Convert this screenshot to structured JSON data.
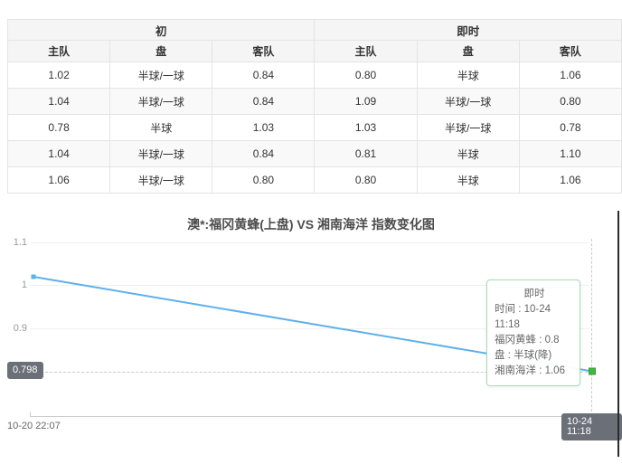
{
  "odds_table": {
    "sections": [
      {
        "label": "初"
      },
      {
        "label": "即时"
      }
    ],
    "column_headers": [
      "主队",
      "盘",
      "客队",
      "主队",
      "盘",
      "客队"
    ],
    "rows": [
      [
        "1.02",
        "半球/一球",
        "0.84",
        "0.80",
        "半球",
        "1.06"
      ],
      [
        "1.04",
        "半球/一球",
        "0.84",
        "1.09",
        "半球/一球",
        "0.80"
      ],
      [
        "0.78",
        "半球",
        "1.03",
        "1.03",
        "半球/一球",
        "0.78"
      ],
      [
        "1.04",
        "半球/一球",
        "0.84",
        "0.81",
        "半球",
        "1.10"
      ],
      [
        "1.06",
        "半球/一球",
        "0.80",
        "0.80",
        "半球",
        "1.06"
      ]
    ]
  },
  "chart": {
    "title": "澳*:福冈黄蜂(上盘) VS 湘南海洋 指数变化图",
    "y_ticks": [
      "1.1",
      "1",
      "0.9"
    ],
    "current_value_badge": "0.798",
    "x_start_label": "10-20 22:07",
    "x_end_badge": "10-24 11:18",
    "line_color": "#5fb0e8",
    "end_dot_color": "#44b549",
    "end_dot_border": "#2f9e36",
    "tooltip": {
      "title": "即时",
      "lines": [
        "时间 : 10-24 11:18",
        "福冈黄蜂 : 0.8",
        "盘 : 半球(降)",
        "湘南海洋 : 1.06"
      ]
    }
  },
  "chart_data": {
    "type": "line",
    "title": "澳*:福冈黄蜂(上盘) VS 湘南海洋 指数变化图",
    "x": [
      "10-20 22:07",
      "10-24 11:18"
    ],
    "series": [
      {
        "name": "福冈黄蜂",
        "values": [
          1.02,
          0.8
        ]
      }
    ],
    "y_ticks": [
      1.1,
      1.0,
      0.9
    ],
    "ylim": [
      0.74,
      1.12
    ],
    "annotation_value": 0.798,
    "grid": true,
    "legend_position": "none"
  }
}
